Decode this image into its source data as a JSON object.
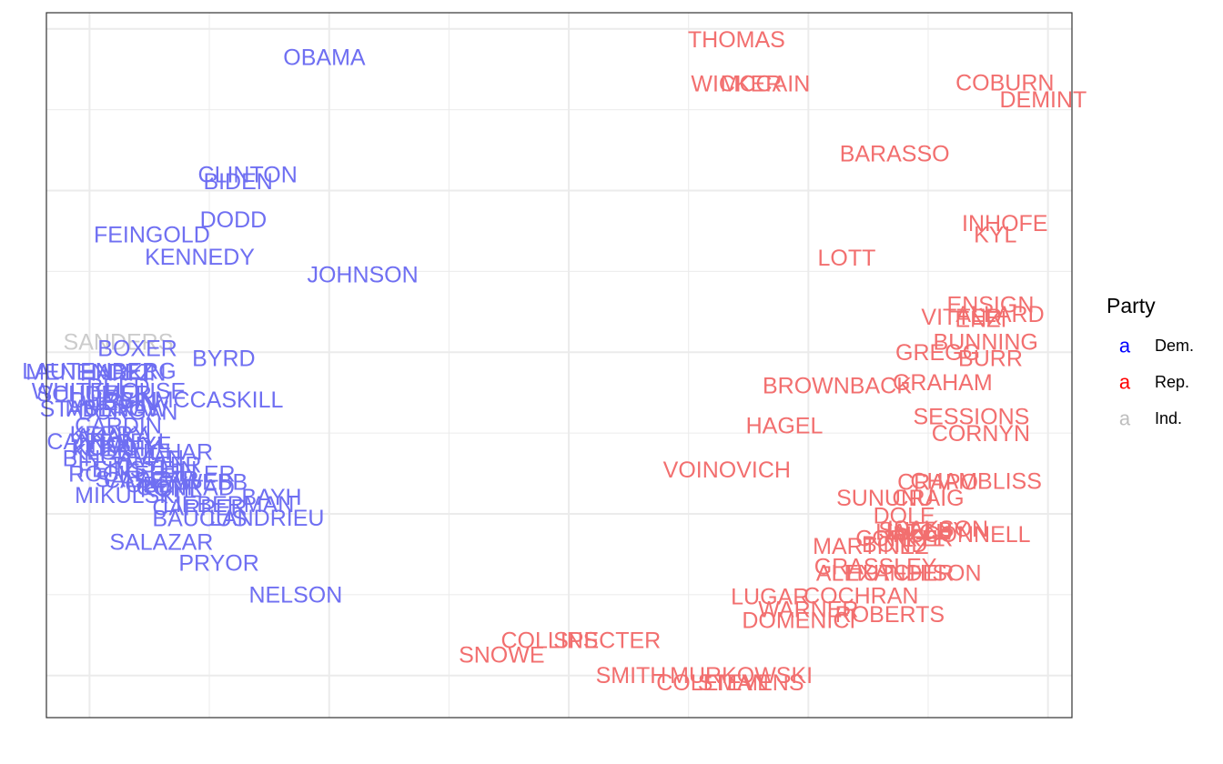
{
  "chart_data": {
    "type": "scatter",
    "title": "",
    "xlabel": "",
    "ylabel": "",
    "xlim": [
      -1.09,
      1.05
    ],
    "ylim": [
      -1.13,
      1.05
    ],
    "grid": true,
    "legend_placement": "right",
    "legend": {
      "title": "Party",
      "key_glyph": "a",
      "entries": [
        {
          "label": "Dem.",
          "color": "#0000ff"
        },
        {
          "label": "Rep.",
          "color": "#ff0000"
        },
        {
          "label": "Ind.",
          "color": "#bebebe"
        }
      ]
    },
    "party_colors": {
      "Dem.": "#6f6ff2",
      "Rep.": "#f26f6f",
      "Ind.": "#cccccc"
    },
    "points": [
      {
        "name": "THOMAS",
        "x": 0.35,
        "y": 0.966,
        "party": "Rep."
      },
      {
        "name": "OBAMA",
        "x": -0.51,
        "y": 0.911,
        "party": "Dem."
      },
      {
        "name": "WICKER",
        "x": 0.35,
        "y": 0.829,
        "party": "Rep."
      },
      {
        "name": "MCCAIN",
        "x": 0.41,
        "y": 0.829,
        "party": "Rep."
      },
      {
        "name": "COBURN",
        "x": 0.91,
        "y": 0.832,
        "party": "Rep."
      },
      {
        "name": "DEMINT",
        "x": 0.99,
        "y": 0.78,
        "party": "Rep."
      },
      {
        "name": "BARASSO",
        "x": 0.68,
        "y": 0.612,
        "party": "Rep."
      },
      {
        "name": "CLINTON",
        "x": -0.67,
        "y": 0.548,
        "party": "Dem."
      },
      {
        "name": "BIDEN",
        "x": -0.69,
        "y": 0.527,
        "party": "Dem."
      },
      {
        "name": "DODD",
        "x": -0.7,
        "y": 0.408,
        "party": "Dem."
      },
      {
        "name": "INHOFE",
        "x": 0.91,
        "y": 0.397,
        "party": "Rep."
      },
      {
        "name": "KYL",
        "x": 0.89,
        "y": 0.362,
        "party": "Rep."
      },
      {
        "name": "FEINGOLD",
        "x": -0.87,
        "y": 0.362,
        "party": "Dem."
      },
      {
        "name": "KENNEDY",
        "x": -0.77,
        "y": 0.293,
        "party": "Dem."
      },
      {
        "name": "LOTT",
        "x": 0.58,
        "y": 0.29,
        "party": "Rep."
      },
      {
        "name": "JOHNSON",
        "x": -0.43,
        "y": 0.238,
        "party": "Dem."
      },
      {
        "name": "ENSIGN",
        "x": 0.88,
        "y": 0.145,
        "party": "Rep."
      },
      {
        "name": "ALLARD",
        "x": 0.9,
        "y": 0.116,
        "party": "Rep."
      },
      {
        "name": "VITTER",
        "x": 0.82,
        "y": 0.107,
        "party": "Rep."
      },
      {
        "name": "ENZI",
        "x": 0.86,
        "y": 0.101,
        "party": "Rep."
      },
      {
        "name": "SANDERS",
        "x": -0.94,
        "y": 0.031,
        "party": "Ind."
      },
      {
        "name": "BUNNING",
        "x": 0.87,
        "y": 0.031,
        "party": "Rep."
      },
      {
        "name": "BOXER",
        "x": -0.9,
        "y": 0.011,
        "party": "Dem."
      },
      {
        "name": "GREGG",
        "x": 0.77,
        "y": -0.002,
        "party": "Rep."
      },
      {
        "name": "BURR",
        "x": 0.88,
        "y": -0.02,
        "party": "Rep."
      },
      {
        "name": "BYRD",
        "x": -0.72,
        "y": -0.02,
        "party": "Dem."
      },
      {
        "name": "LAUTENBERG",
        "x": -0.98,
        "y": -0.06,
        "party": "Dem."
      },
      {
        "name": "MENENDEZ",
        "x": -1.0,
        "y": -0.063,
        "party": "Dem."
      },
      {
        "name": "HARKIN",
        "x": -0.93,
        "y": -0.066,
        "party": "Dem."
      },
      {
        "name": "BROWNBACK",
        "x": 0.56,
        "y": -0.104,
        "party": "Rep."
      },
      {
        "name": "GRAHAM",
        "x": 0.78,
        "y": -0.095,
        "party": "Rep."
      },
      {
        "name": "REED",
        "x": -0.94,
        "y": -0.108,
        "party": "Dem."
      },
      {
        "name": "WHITEHOUSE",
        "x": -0.96,
        "y": -0.122,
        "party": "Dem."
      },
      {
        "name": "SCHUMER",
        "x": -0.99,
        "y": -0.13,
        "party": "Dem."
      },
      {
        "name": "MCCASKILL",
        "x": -0.73,
        "y": -0.148,
        "party": "Dem."
      },
      {
        "name": "DURBIN",
        "x": -0.95,
        "y": -0.15,
        "party": "Dem."
      },
      {
        "name": "LEVIN",
        "x": -0.93,
        "y": -0.157,
        "party": "Dem."
      },
      {
        "name": "MURRAY",
        "x": -0.95,
        "y": -0.174,
        "party": "Dem."
      },
      {
        "name": "STABENOW",
        "x": -0.97,
        "y": -0.177,
        "party": "Dem."
      },
      {
        "name": "DORGAN",
        "x": -0.92,
        "y": -0.186,
        "party": "Dem."
      },
      {
        "name": "SESSIONS",
        "x": 0.84,
        "y": -0.2,
        "party": "Rep."
      },
      {
        "name": "HAGEL",
        "x": 0.45,
        "y": -0.229,
        "party": "Rep."
      },
      {
        "name": "CARDIN",
        "x": -0.94,
        "y": -0.229,
        "party": "Dem."
      },
      {
        "name": "KERRY",
        "x": -0.96,
        "y": -0.255,
        "party": "Dem."
      },
      {
        "name": "CORNYN",
        "x": 0.86,
        "y": -0.252,
        "party": "Rep."
      },
      {
        "name": "AKAKA",
        "x": -0.95,
        "y": -0.261,
        "party": "Dem."
      },
      {
        "name": "CANTWELL",
        "x": -0.96,
        "y": -0.278,
        "party": "Dem."
      },
      {
        "name": "INOUYE",
        "x": -0.92,
        "y": -0.287,
        "party": "Dem."
      },
      {
        "name": "KOHL",
        "x": -0.97,
        "y": -0.296,
        "party": "Dem."
      },
      {
        "name": "LEAHY",
        "x": -0.93,
        "y": -0.299,
        "party": "Dem."
      },
      {
        "name": "KLOBUCHAR",
        "x": -0.89,
        "y": -0.31,
        "party": "Dem."
      },
      {
        "name": "BINGAMAN",
        "x": -0.93,
        "y": -0.33,
        "party": "Dem."
      },
      {
        "name": "TESTER",
        "x": -0.86,
        "y": -0.35,
        "party": "Dem."
      },
      {
        "name": "FEINSTEIN",
        "x": -0.9,
        "y": -0.363,
        "party": "Dem."
      },
      {
        "name": "VOINOVICH",
        "x": 0.33,
        "y": -0.365,
        "party": "Rep."
      },
      {
        "name": "ROCKEFELLER",
        "x": -0.87,
        "y": -0.377,
        "party": "Dem."
      },
      {
        "name": "SALAZAR",
        "x": -0.88,
        "y": -0.394,
        "party": "Dem."
      },
      {
        "name": "CASEY",
        "x": -0.89,
        "y": -0.397,
        "party": "Dem."
      },
      {
        "name": "CHAMBLISS",
        "x": 0.85,
        "y": -0.4,
        "party": "Rep."
      },
      {
        "name": "CRAPO",
        "x": 0.77,
        "y": -0.403,
        "party": "Rep."
      },
      {
        "name": "WEBB",
        "x": -0.74,
        "y": -0.403,
        "party": "Dem."
      },
      {
        "name": "OBEY",
        "x": -0.86,
        "y": -0.412,
        "party": "Dem."
      },
      {
        "name": "CONRAD",
        "x": -0.8,
        "y": -0.42,
        "party": "Dem."
      },
      {
        "name": "KOHL2",
        "x": -0.83,
        "y": -0.426,
        "party": "Dem."
      },
      {
        "name": "MIKULSKI",
        "x": -0.92,
        "y": -0.444,
        "party": "Dem."
      },
      {
        "name": "BAYH",
        "x": -0.62,
        "y": -0.449,
        "party": "Dem."
      },
      {
        "name": "SUNUNU",
        "x": 0.66,
        "y": -0.452,
        "party": "Rep."
      },
      {
        "name": "CRAIG",
        "x": 0.75,
        "y": -0.452,
        "party": "Rep."
      },
      {
        "name": "LIEBERMAN",
        "x": -0.71,
        "y": -0.472,
        "party": "Dem."
      },
      {
        "name": "CARPER",
        "x": -0.77,
        "y": -0.481,
        "party": "Dem."
      },
      {
        "name": "BAUCUS",
        "x": -0.77,
        "y": -0.516,
        "party": "Dem."
      },
      {
        "name": "LANDRIEU",
        "x": -0.63,
        "y": -0.514,
        "party": "Dem."
      },
      {
        "name": "DOLE",
        "x": 0.7,
        "y": -0.507,
        "party": "Rep."
      },
      {
        "name": "McCONNELL",
        "x": 0.82,
        "y": -0.565,
        "party": "Rep."
      },
      {
        "name": "ISAKSON",
        "x": 0.77,
        "y": -0.548,
        "party": "Rep."
      },
      {
        "name": "HATCH",
        "x": 0.72,
        "y": -0.557,
        "party": "Rep."
      },
      {
        "name": "SHELBY",
        "x": 0.74,
        "y": -0.552,
        "party": "Rep."
      },
      {
        "name": "CORKER",
        "x": 0.7,
        "y": -0.577,
        "party": "Rep."
      },
      {
        "name": "KYL2",
        "x": 0.74,
        "y": -0.577,
        "party": "Rep."
      },
      {
        "name": "SALAZAR2",
        "x": -0.85,
        "y": -0.589,
        "party": "Dem."
      },
      {
        "name": "MARTINEZ",
        "x": 0.63,
        "y": -0.601,
        "party": "Rep."
      },
      {
        "name": "BOND",
        "x": 0.68,
        "y": -0.595,
        "party": "Rep."
      },
      {
        "name": "PRYOR",
        "x": -0.73,
        "y": -0.653,
        "party": "Dem."
      },
      {
        "name": "GRASSLEY",
        "x": 0.64,
        "y": -0.664,
        "party": "Rep."
      },
      {
        "name": "ALEXANDER",
        "x": 0.66,
        "y": -0.684,
        "party": "Rep."
      },
      {
        "name": "HUTCHISON",
        "x": 0.72,
        "y": -0.684,
        "party": "Rep."
      },
      {
        "name": "NELSON",
        "x": -0.57,
        "y": -0.751,
        "party": "Dem."
      },
      {
        "name": "LUGAR",
        "x": 0.42,
        "y": -0.757,
        "party": "Rep."
      },
      {
        "name": "COCHRAN",
        "x": 0.61,
        "y": -0.754,
        "party": "Rep."
      },
      {
        "name": "WARNER",
        "x": 0.5,
        "y": -0.797,
        "party": "Rep."
      },
      {
        "name": "ROBERTS",
        "x": 0.67,
        "y": -0.812,
        "party": "Rep."
      },
      {
        "name": "DOMENICI",
        "x": 0.48,
        "y": -0.83,
        "party": "Rep."
      },
      {
        "name": "COLLINS",
        "x": -0.04,
        "y": -0.893,
        "party": "Rep."
      },
      {
        "name": "SPECTER",
        "x": 0.08,
        "y": -0.893,
        "party": "Rep."
      },
      {
        "name": "SNOWE",
        "x": -0.14,
        "y": -0.938,
        "party": "Rep."
      },
      {
        "name": "MURKOWSKI",
        "x": 0.36,
        "y": -1.0,
        "party": "Rep."
      },
      {
        "name": "SMITH",
        "x": 0.13,
        "y": -1.0,
        "party": "Rep."
      },
      {
        "name": "COLEMAN",
        "x": 0.3,
        "y": -1.023,
        "party": "Rep."
      },
      {
        "name": "STEVENS",
        "x": 0.38,
        "y": -1.023,
        "party": "Rep."
      }
    ]
  },
  "chart_display": {
    "labels": {
      "THOMAS": "THOMAS",
      "OBAMA": "OBAMA",
      "WICKER": "WICKER",
      "MCCAIN": "MCCAIN",
      "COBURN": "COBURN",
      "DEMINT": "DEMINT",
      "BARASSO": "BARASSO",
      "CLINTON": "CLINTON",
      "BIDEN": "BIDEN",
      "DODD": "DODD",
      "INHOFE": "INHOFE",
      "KYL": "KYL",
      "FEINGOLD": "FEINGOLD",
      "KENNEDY": "KENNEDY",
      "LOTT": "LOTT",
      "JOHNSON": "JOHNSON",
      "ENSIGN": "ENSIGN",
      "ALLARD": "ALLARD",
      "VITTER": "VITTER",
      "ENZI": "ENZI",
      "SANDERS": "SANDERS",
      "BUNNING": "BUNNING",
      "BOXER": "BOXER",
      "GREGG": "GREGG",
      "BURR": "BURR",
      "BYRD": "BYRD",
      "LAUTENBERG": "LAUTENBERG",
      "MENENDEZ": "MENENDEZ",
      "HARKIN": "HARKIN",
      "BROWNBACK": "BROWNBACK",
      "GRAHAM": "GRAHAM",
      "REED": "REED",
      "WHITEHOUSE": "WHITEHOUSE",
      "SCHUMER": "SCHUMER",
      "MCCASKILL": "MCCASKILL",
      "DURBIN": "DURBIN",
      "LEVIN": "LEVIN",
      "MURRAY": "MURRAY",
      "STABENOW": "STABENOW",
      "DORGAN": "DORGAN",
      "SESSIONS": "SESSIONS",
      "HAGEL": "HAGEL",
      "CARDIN": "CARDIN",
      "KERRY": "KERRY",
      "CORNYN": "CORNYN",
      "AKAKA": "AKAKA",
      "CANTWELL": "CANTWELL",
      "INOUYE": "INOUYE",
      "KOHL": "KOHL",
      "LEAHY": "LEAHY",
      "KLOBUCHAR": "KLOBUCHAR",
      "BINGAMAN": "BINGAMAN",
      "TESTER": "TESTER",
      "FEINSTEIN": "FEINSTEIN",
      "VOINOVICH": "VOINOVICH",
      "ROCKEFELLER": "ROCKEFELLER",
      "SALAZAR": "SALAZAR",
      "CASEY": "CASEY",
      "CHAMBLISS": "CHAMBLISS",
      "CRAPO": "CRAPO",
      "WEBB": "WEBB",
      "OBEY": "OBEY",
      "CONRAD": "CONRAD",
      "KOHL2": "KOHL",
      "MIKULSKI": "MIKULSKI",
      "BAYH": "BAYH",
      "SUNUNU": "SUNUNU",
      "CRAIG": "CRAIG",
      "LIEBERMAN": "LIEBERMAN",
      "CARPER": "CARPER",
      "BAUCUS": "BAUCUS",
      "LANDRIEU": "LANDRIEU",
      "DOLE": "DOLE",
      "McCONNELL": "McCONNELL",
      "ISAKSON": "ISAKSON",
      "HATCH": "HATCH",
      "SHELBY": "SHELBY",
      "CORKER": "CORKER",
      "KYL2": "KYL",
      "SALAZAR2": "SALAZAR",
      "MARTINEZ": "MARTINEZ",
      "BOND": "BOND",
      "PRYOR": "PRYOR",
      "GRASSLEY": "GRASSLEY",
      "ALEXANDER": "ALEXANDER",
      "HUTCHISON": "HUTCHISON",
      "NELSON": "NELSON",
      "LUGAR": "LUGAR",
      "COCHRAN": "COCHRAN",
      "WARNER": "WARNER",
      "ROBERTS": "ROBERTS",
      "DOMENICI": "DOMENICI",
      "COLLINS": "COLLINS",
      "SPECTER": "SPECTER",
      "SNOWE": "SNOWE",
      "MURKOWSKI": "MURKOWSKI",
      "SMITH": "SMITH",
      "COLEMAN": "COLEMAN",
      "STEVENS": "STEVENS"
    }
  }
}
